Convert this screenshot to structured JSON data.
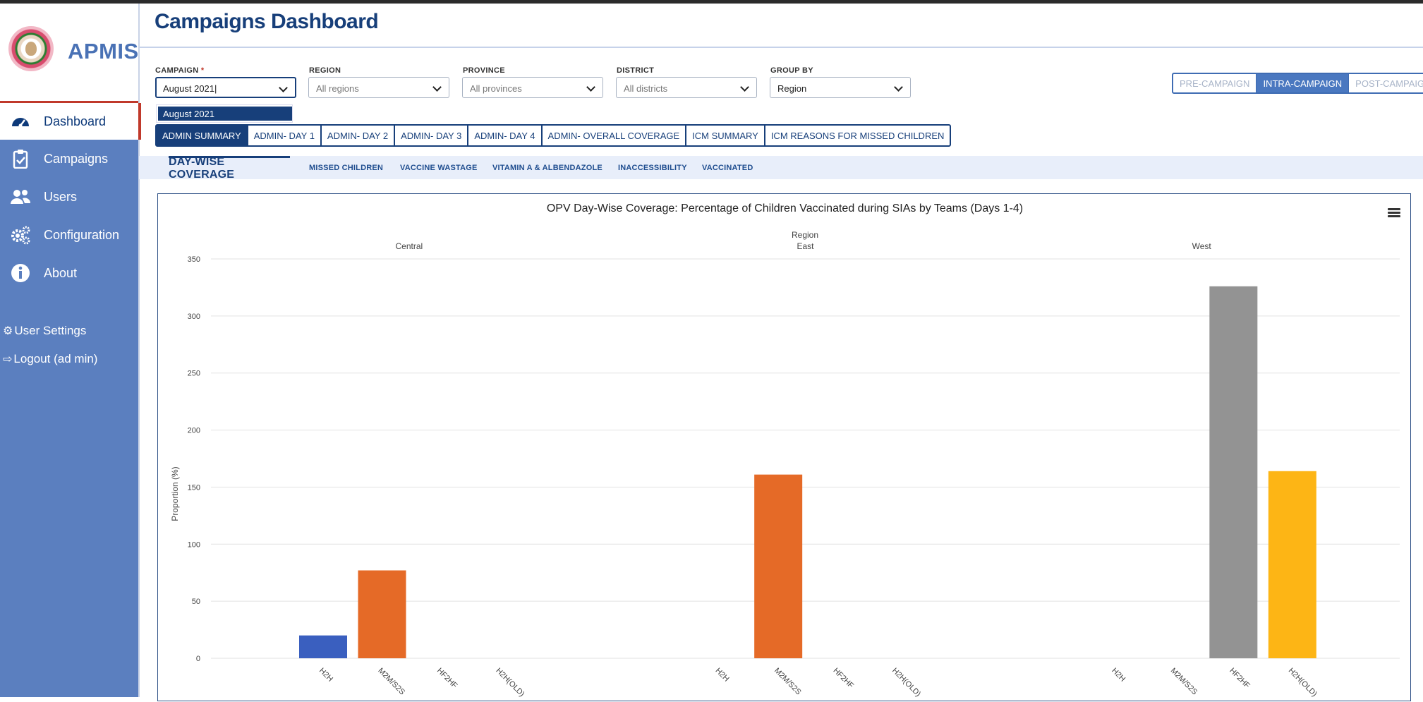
{
  "app": {
    "name": "APMIS",
    "page_title": "Campaigns Dashboard"
  },
  "sidebar": {
    "items": [
      {
        "label": "Dashboard",
        "icon": "speedometer-icon",
        "active": true
      },
      {
        "label": "Campaigns",
        "icon": "clipboard-icon"
      },
      {
        "label": "Users",
        "icon": "users-icon"
      },
      {
        "label": "Configuration",
        "icon": "gears-icon"
      },
      {
        "label": "About",
        "icon": "info-icon"
      }
    ],
    "user_settings": "User Settings",
    "logout": "Logout (ad min)"
  },
  "filters": {
    "campaign": {
      "label": "CAMPAIGN",
      "required_mark": "*",
      "value": "August 2021",
      "dropdown_option": "August 2021"
    },
    "region": {
      "label": "REGION",
      "placeholder": "All regions"
    },
    "province": {
      "label": "PROVINCE",
      "placeholder": "All provinces"
    },
    "district": {
      "label": "DISTRICT",
      "placeholder": "All districts"
    },
    "group_by": {
      "label": "GROUP BY",
      "value": "Region"
    }
  },
  "phases": {
    "pre": "PRE-CAMPAIGN",
    "intra": "INTRA-CAMPAIGN",
    "post": "POST-CAMPAIGN",
    "active": "INTRA-CAMPAIGN"
  },
  "tabs": [
    "ADMIN SUMMARY",
    "ADMIN- DAY 1",
    "ADMIN- DAY 2",
    "ADMIN- DAY 3",
    "ADMIN- DAY 4",
    "ADMIN- OVERALL COVERAGE",
    "ICM SUMMARY",
    "ICM REASONS FOR MISSED CHILDREN"
  ],
  "subtabs": [
    "DAY-WISE COVERAGE",
    "MISSED CHILDREN",
    "VACCINE WASTAGE",
    "VITAMIN A & ALBENDAZOLE",
    "INACCESSIBILITY",
    "VACCINATED"
  ],
  "colors": {
    "accent": "#173f7a",
    "sidebar": "#5b7fbf",
    "h2h": "#3a5fbf",
    "m2m": "#e56a27",
    "hf2hf": "#939393",
    "h2h_old": "#fdb515"
  },
  "chart_data": {
    "type": "bar",
    "title": "OPV Day-Wise Coverage: Percentage of Children Vaccinated during SIAs by Teams (Days 1-4)",
    "group_axis_label": "Region",
    "ylabel": "Proportion (%)",
    "ylim": [
      0,
      350
    ],
    "yticks": [
      0,
      50,
      100,
      150,
      200,
      250,
      300,
      350
    ],
    "grid": true,
    "groups": [
      {
        "name": "Central",
        "categories": [
          "H2H",
          "M2M/S2S",
          "HF2HF",
          "H2H(OLD)"
        ],
        "values": [
          20,
          77,
          0,
          0
        ]
      },
      {
        "name": "East",
        "categories": [
          "H2H",
          "M2M/S2S",
          "HF2HF",
          "H2H(OLD)"
        ],
        "values": [
          0,
          161,
          0,
          0
        ]
      },
      {
        "name": "West",
        "categories": [
          "H2H",
          "M2M/S2S",
          "HF2HF",
          "H2H(OLD)"
        ],
        "values": [
          0,
          0,
          326,
          164
        ]
      }
    ]
  }
}
